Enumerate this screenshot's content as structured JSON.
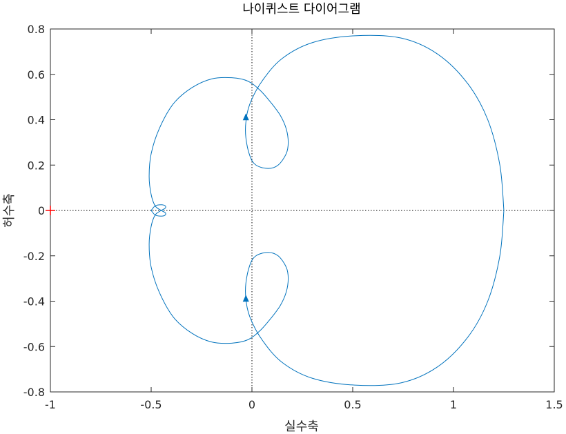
{
  "chart_data": {
    "type": "line",
    "title": "나이퀴스트 다이어그램",
    "xlabel": "실수축",
    "ylabel": "허수축",
    "xlim": [
      -1,
      1.5
    ],
    "ylim": [
      -0.8,
      0.8
    ],
    "xticks": [
      "-1",
      "-0.5",
      "0",
      "0.5",
      "1",
      "1.5"
    ],
    "yticks": [
      "0.8",
      "0.6",
      "0.4",
      "0.2",
      "0",
      "-0.2",
      "-0.4",
      "-0.6",
      "-0.8"
    ],
    "grid": false,
    "critical_point": [
      -1,
      0
    ],
    "series": [
      {
        "color": "#0072BD",
        "points": [
          [
            1.25,
            0
          ],
          [
            1.23,
            0.2
          ],
          [
            1.17,
            0.4
          ],
          [
            1.07,
            0.56
          ],
          [
            0.92,
            0.69
          ],
          [
            0.74,
            0.76
          ],
          [
            0.51,
            0.77
          ],
          [
            0.3,
            0.74
          ],
          [
            0.15,
            0.67
          ],
          [
            0.05,
            0.57
          ],
          [
            -0.01,
            0.47
          ],
          [
            -0.03,
            0.39
          ],
          [
            -0.03,
            0.32
          ],
          [
            -0.01,
            0.24
          ],
          [
            0.02,
            0.2
          ],
          [
            0.08,
            0.185
          ],
          [
            0.13,
            0.2
          ],
          [
            0.17,
            0.25
          ],
          [
            0.18,
            0.3
          ],
          [
            0.17,
            0.36
          ],
          [
            0.14,
            0.42
          ],
          [
            0.09,
            0.48
          ],
          [
            0.04,
            0.53
          ],
          [
            -0.02,
            0.57
          ],
          [
            -0.1,
            0.585
          ],
          [
            -0.2,
            0.58
          ],
          [
            -0.3,
            0.54
          ],
          [
            -0.39,
            0.47
          ],
          [
            -0.46,
            0.36
          ],
          [
            -0.5,
            0.25
          ],
          [
            -0.51,
            0.15
          ],
          [
            -0.5,
            0.07
          ],
          [
            -0.48,
            0.02
          ],
          [
            -0.45,
            0.0
          ],
          [
            -0.43,
            -0.01
          ],
          [
            -0.43,
            -0.02
          ],
          [
            -0.45,
            -0.025
          ],
          [
            -0.48,
            -0.02
          ],
          [
            -0.5,
            0.0
          ]
        ]
      },
      {
        "color": "#0072BD",
        "points": [
          [
            1.25,
            0
          ],
          [
            1.23,
            -0.2
          ],
          [
            1.17,
            -0.4
          ],
          [
            1.07,
            -0.56
          ],
          [
            0.92,
            -0.69
          ],
          [
            0.74,
            -0.76
          ],
          [
            0.51,
            -0.77
          ],
          [
            0.3,
            -0.74
          ],
          [
            0.15,
            -0.67
          ],
          [
            0.05,
            -0.57
          ],
          [
            -0.01,
            -0.47
          ],
          [
            -0.03,
            -0.39
          ],
          [
            -0.03,
            -0.32
          ],
          [
            -0.01,
            -0.24
          ],
          [
            0.02,
            -0.2
          ],
          [
            0.08,
            -0.185
          ],
          [
            0.13,
            -0.2
          ],
          [
            0.17,
            -0.25
          ],
          [
            0.18,
            -0.3
          ],
          [
            0.17,
            -0.36
          ],
          [
            0.14,
            -0.42
          ],
          [
            0.09,
            -0.48
          ],
          [
            0.04,
            -0.53
          ],
          [
            -0.02,
            -0.57
          ],
          [
            -0.1,
            -0.585
          ],
          [
            -0.2,
            -0.58
          ],
          [
            -0.3,
            -0.54
          ],
          [
            -0.39,
            -0.47
          ],
          [
            -0.46,
            -0.36
          ],
          [
            -0.5,
            -0.25
          ],
          [
            -0.51,
            -0.15
          ],
          [
            -0.5,
            -0.07
          ],
          [
            -0.48,
            -0.02
          ],
          [
            -0.45,
            0.0
          ],
          [
            -0.43,
            0.01
          ],
          [
            -0.43,
            0.02
          ],
          [
            -0.45,
            0.025
          ],
          [
            -0.48,
            0.02
          ],
          [
            -0.5,
            0.0
          ]
        ]
      }
    ],
    "arrows": [
      {
        "at": [
          -0.03,
          0.41
        ],
        "direction": "up"
      },
      {
        "at": [
          -0.03,
          -0.39
        ],
        "direction": "up"
      }
    ]
  }
}
